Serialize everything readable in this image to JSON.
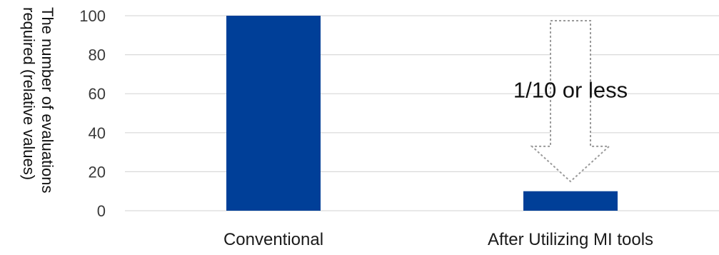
{
  "chart_data": {
    "type": "bar",
    "categories": [
      "Conventional",
      "After Utilizing MI tools"
    ],
    "values": [
      100,
      10
    ],
    "ylabel_lines": [
      "The number of evaluations",
      "required (relative values)"
    ],
    "ylim": [
      0,
      100
    ],
    "yticks": [
      0,
      20,
      40,
      60,
      80,
      100
    ],
    "grid": true,
    "legend": "none",
    "bar_color": "#003f98",
    "grid_color": "#d9d9d9",
    "annotation": {
      "text": "1/10 or less",
      "arrow": "down",
      "from_category": 1,
      "from_value": 100,
      "to_value": 15
    }
  }
}
